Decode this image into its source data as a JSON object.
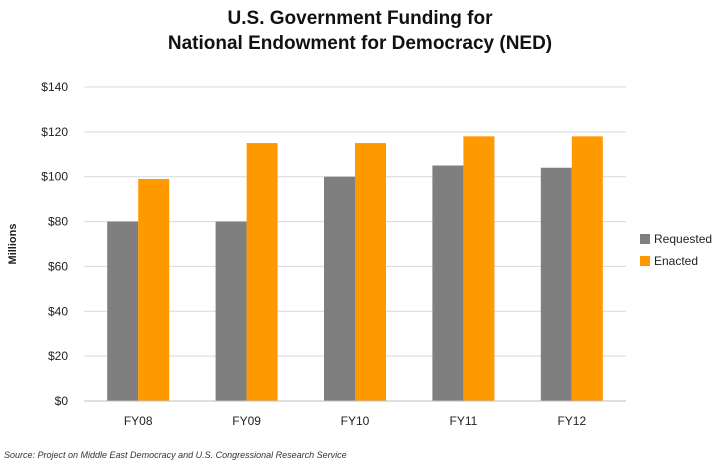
{
  "chart_data": {
    "type": "bar",
    "title": [
      "U.S. Government Funding for",
      "National Endowment for Democracy (NED)"
    ],
    "xlabel": "",
    "ylabel": "Millions",
    "categories": [
      "FY08",
      "FY09",
      "FY10",
      "FY11",
      "FY12"
    ],
    "series": [
      {
        "name": "Requested",
        "color": "#7f7f7f",
        "values": [
          80,
          80,
          100,
          105,
          104
        ]
      },
      {
        "name": "Enacted",
        "color": "#ff9900",
        "values": [
          99,
          115,
          115,
          118,
          118
        ]
      }
    ],
    "ylim": [
      0,
      140
    ],
    "yticks": [
      0,
      20,
      40,
      60,
      80,
      100,
      120,
      140
    ],
    "ytick_labels": [
      "$0",
      "$20",
      "$40",
      "$60",
      "$80",
      "$100",
      "$120",
      "$140"
    ],
    "grid": true,
    "legend_position": "right",
    "source": "Source: Project on Middle East Democracy and U.S. Congressional Research Service"
  }
}
